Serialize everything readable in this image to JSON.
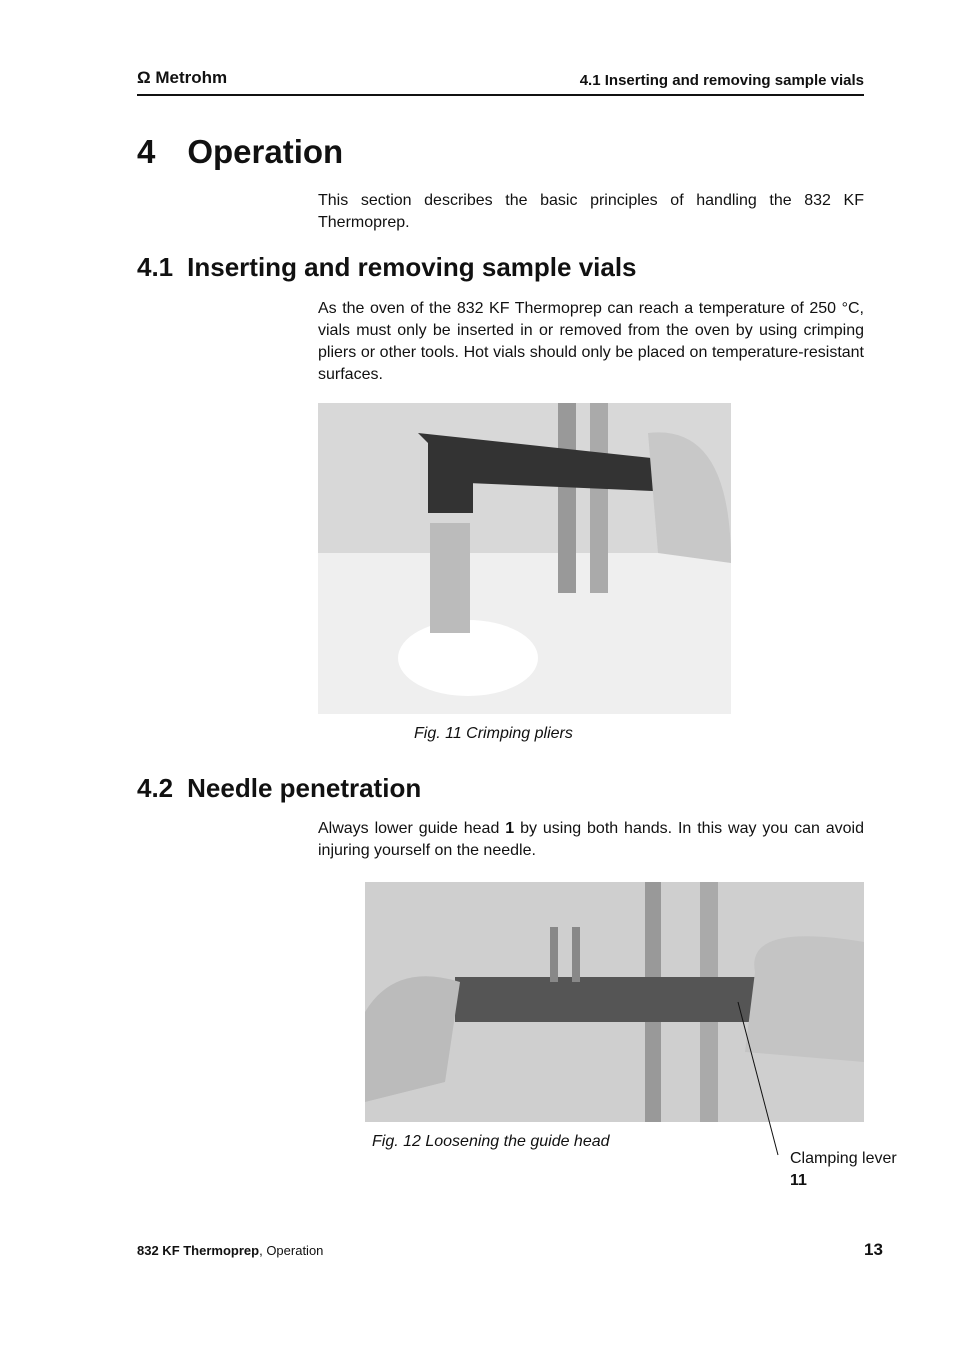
{
  "header": {
    "logo": "Metrohm",
    "section": "4.1 Inserting and removing sample vials"
  },
  "chapter": {
    "number": "4",
    "title": "Operation",
    "intro": "This section describes the basic principles of handling the 832 KF Thermoprep."
  },
  "section1": {
    "number": "4.1",
    "title": "Inserting and removing sample vials",
    "text": "As the oven of the 832 KF Thermoprep can reach a temperature of 250 °C, vials must only be inserted in or removed from the oven by using crimping pliers or other tools. Hot vials should only be placed on temperature-resistant surfaces.",
    "caption": "Fig. 11 Crimping pliers"
  },
  "section2": {
    "number": "4.2",
    "title": "Needle penetration",
    "text_before": "Always lower guide head",
    "bold": "1",
    "text_after": "by using both hands. In this way you can avoid injuring yourself on the needle.",
    "caption": "Fig. 12 Loosening the guide head",
    "callout_label": "Clamping lever",
    "callout_number": "11"
  },
  "footer": {
    "product": "832 KF Thermoprep",
    "suffix": ", Operation",
    "page": "13"
  }
}
